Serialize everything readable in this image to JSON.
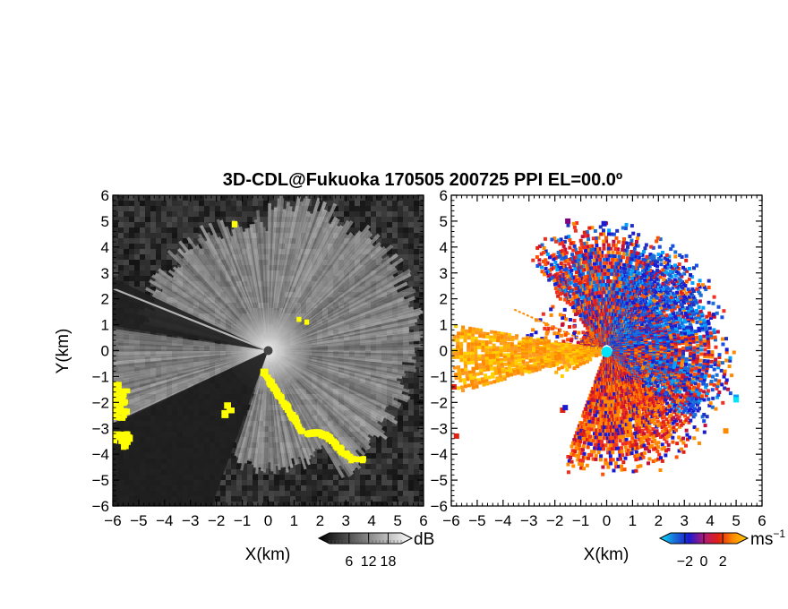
{
  "chart_data": [
    {
      "type": "heatmap",
      "panel": "reflectivity",
      "title": "3D-CDL@Fukuoka 170505 200725 PPI EL=00.0º",
      "xlabel": "X(km)",
      "ylabel": "Y(km)",
      "xlim": [
        -6,
        6
      ],
      "ylim": [
        -6,
        6
      ],
      "xticks": [
        "-6",
        "-5",
        "-4",
        "-3",
        "-2",
        "-1",
        "0",
        "1",
        "2",
        "3",
        "4",
        "5",
        "6"
      ],
      "yticks": [
        "6",
        "5",
        "4",
        "3",
        "2",
        "1",
        "0",
        "-1",
        "-2",
        "-3",
        "-4",
        "-5",
        "-6"
      ],
      "colorbar": {
        "unit": "dB",
        "ticks": [
          "6",
          "12",
          "18"
        ],
        "tick_values": [
          6,
          12,
          18
        ],
        "range": [
          0,
          22
        ],
        "colors": [
          "#000000",
          "#ffffff"
        ],
        "highlight_color": "#ffff00"
      },
      "features": [
        "bright fan of returns centered on radar at origin, strongest toward north-east",
        "dark wedge sectors toward west-north-west and south-west",
        "yellow (high reflectivity) patches along a line from (0,-1) to (4,-4) and at the west edge"
      ]
    },
    {
      "type": "heatmap",
      "panel": "radial velocity",
      "xlabel": "X(km)",
      "xlim": [
        -6,
        6
      ],
      "ylim": [
        -6,
        6
      ],
      "xticks": [
        "-6",
        "-5",
        "-4",
        "-3",
        "-2",
        "-1",
        "0",
        "1",
        "2",
        "3",
        "4",
        "5",
        "6"
      ],
      "yticks": [
        "6",
        "5",
        "4",
        "3",
        "2",
        "1",
        "0",
        "-1",
        "-2",
        "-3",
        "-4",
        "-5",
        "-6"
      ],
      "colorbar": {
        "unit": "ms",
        "unit_exponent": "−1",
        "ticks": [
          "−2",
          "0",
          "2"
        ],
        "tick_values": [
          -2,
          0,
          2
        ],
        "range": [
          -3.5,
          3.5
        ],
        "colors": [
          "#00e5ff",
          "#1a6fd6",
          "#1a1ad0",
          "#b01a7a",
          "#e02010",
          "#ff8a00",
          "#ffd000"
        ]
      },
      "features": [
        "blue (negative velocity) dominates north and east of radar",
        "red-orange (positive velocity) toward north-west and south-east",
        "orange-yellow wedge extending west of radar",
        "cyan marker at radar origin"
      ]
    }
  ]
}
